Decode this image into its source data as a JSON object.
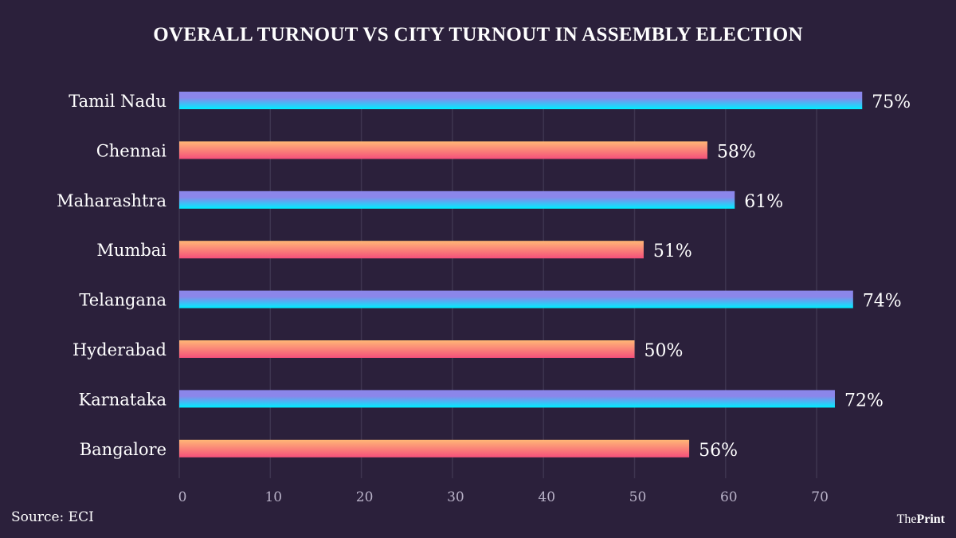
{
  "chart_data": {
    "type": "bar",
    "orientation": "horizontal",
    "title": "OVERALL TURNOUT VS CITY TURNOUT IN ASSEMBLY ELECTION",
    "xlabel": "",
    "ylabel": "",
    "categories": [
      "Tamil Nadu",
      "Chennai",
      "Maharashtra",
      "Mumbai",
      "Telangana",
      "Hyderabad",
      "Karnataka",
      "Bangalore"
    ],
    "values": [
      75,
      58,
      61,
      51,
      74,
      50,
      72,
      56
    ],
    "value_labels": [
      "75%",
      "58%",
      "61%",
      "51%",
      "74%",
      "50%",
      "72%",
      "56%"
    ],
    "bar_kind": [
      "state",
      "city",
      "state",
      "city",
      "state",
      "city",
      "state",
      "city"
    ],
    "xlim": [
      0,
      75
    ],
    "xticks": [
      0,
      10,
      20,
      30,
      40,
      50,
      60,
      70
    ],
    "xtick_labels": [
      "0",
      "10",
      "20",
      "30",
      "40",
      "50",
      "60",
      "70"
    ],
    "grid": true,
    "colors": {
      "state_top": "#8b86ea",
      "state_bottom": "#00eeff",
      "city_top": "#ffb776",
      "city_bottom": "#f5507a",
      "background": "#2b203b",
      "gridline": "#3e3550",
      "tick_label": "#b9b2c8"
    }
  },
  "footer": {
    "source": "Source: ECI",
    "logo_the": "The",
    "logo_print": "Print"
  }
}
